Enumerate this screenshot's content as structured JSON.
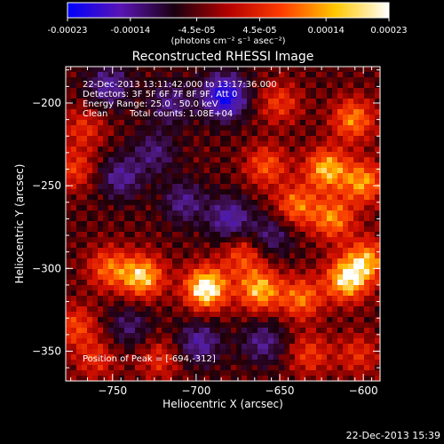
{
  "chart_data": {
    "type": "heatmap",
    "title": "Reconstructed RHESSI Image",
    "xlabel": "Heliocentric X (arcsec)",
    "ylabel": "Heliocentric Y (arcsec)",
    "xlim": [
      -778,
      -590
    ],
    "ylim": [
      -368,
      -178
    ],
    "x_ticks": [
      -750,
      -700,
      -650,
      -600
    ],
    "y_ticks": [
      -350,
      -300,
      -250,
      -200
    ],
    "x_tick_labels": [
      "−750",
      "−700",
      "−650",
      "−600"
    ],
    "y_tick_labels": [
      "−350",
      "−300",
      "−250",
      "−200"
    ],
    "colorbar": {
      "min": -0.00023,
      "max": 0.00023,
      "ticks": [
        -0.00023,
        -0.00014,
        -4.5e-05,
        4.5e-05,
        0.00014,
        0.00023
      ],
      "tick_labels": [
        "-0.00023",
        "-0.00014",
        "-4.5e-05",
        "4.5e-05",
        "0.00014",
        "0.00023"
      ],
      "unit_label": "(photons cm⁻² s⁻¹ asec⁻²)",
      "colors": [
        "#0000ff",
        "#5a14b4",
        "#1a0010",
        "#b40000",
        "#ff3c00",
        "#ffc800",
        "#ffffff"
      ]
    },
    "annotations": {
      "time_range": "22-Dec-2013 13:11:42.000 to 13:17:36.000",
      "detectors": "Detectors: 3F 5F 6F 7F 8F 9F, Att 0",
      "energy": "Energy Range: 25.0 - 50.0 keV",
      "algorithm": "Clean",
      "counts": "Total counts: 1.08E+04",
      "peak": "Position of Peak = [-694,-312]"
    },
    "peak": {
      "x": -694,
      "y": -312
    },
    "blobs": [
      {
        "x": -694,
        "y": -312,
        "v": 0.00023
      },
      {
        "x": -732,
        "y": -305,
        "v": 0.00018
      },
      {
        "x": -752,
        "y": -300,
        "v": 0.00012
      },
      {
        "x": -662,
        "y": -313,
        "v": 0.00017
      },
      {
        "x": -637,
        "y": -318,
        "v": 0.00013
      },
      {
        "x": -610,
        "y": -307,
        "v": 0.00019
      },
      {
        "x": -598,
        "y": -295,
        "v": 0.00015
      },
      {
        "x": -622,
        "y": -240,
        "v": 0.00017
      },
      {
        "x": -600,
        "y": -248,
        "v": 0.00015
      },
      {
        "x": -640,
        "y": -262,
        "v": 0.00013
      },
      {
        "x": -618,
        "y": -270,
        "v": 0.00014
      },
      {
        "x": -658,
        "y": -238,
        "v": 0.00011
      },
      {
        "x": -606,
        "y": -210,
        "v": 0.00014
      },
      {
        "x": -650,
        "y": -200,
        "v": 9e-05
      },
      {
        "x": -773,
        "y": -240,
        "v": 9e-05
      },
      {
        "x": -767,
        "y": -215,
        "v": 8e-05
      },
      {
        "x": -772,
        "y": -335,
        "v": 0.0001
      },
      {
        "x": -760,
        "y": -355,
        "v": 8e-05
      },
      {
        "x": -722,
        "y": -355,
        "v": 8e-05
      },
      {
        "x": -632,
        "y": -352,
        "v": 9e-05
      },
      {
        "x": -603,
        "y": -352,
        "v": 8e-05
      },
      {
        "x": -672,
        "y": -292,
        "v": 0.0001
      },
      {
        "x": -707,
        "y": -260,
        "v": -0.0001
      },
      {
        "x": -745,
        "y": -245,
        "v": -0.00011
      },
      {
        "x": -683,
        "y": -196,
        "v": -0.00023
      },
      {
        "x": -752,
        "y": -190,
        "v": -0.00012
      },
      {
        "x": -680,
        "y": -270,
        "v": -0.00013
      },
      {
        "x": -725,
        "y": -230,
        "v": -9e-05
      },
      {
        "x": -715,
        "y": -200,
        "v": -0.0001
      },
      {
        "x": -698,
        "y": -345,
        "v": -0.00012
      },
      {
        "x": -660,
        "y": -345,
        "v": -0.0001
      },
      {
        "x": -740,
        "y": -335,
        "v": -8e-05
      },
      {
        "x": -655,
        "y": -280,
        "v": -9e-05
      }
    ]
  },
  "footer": {
    "timestamp": "22-Dec-2013 15:39"
  }
}
